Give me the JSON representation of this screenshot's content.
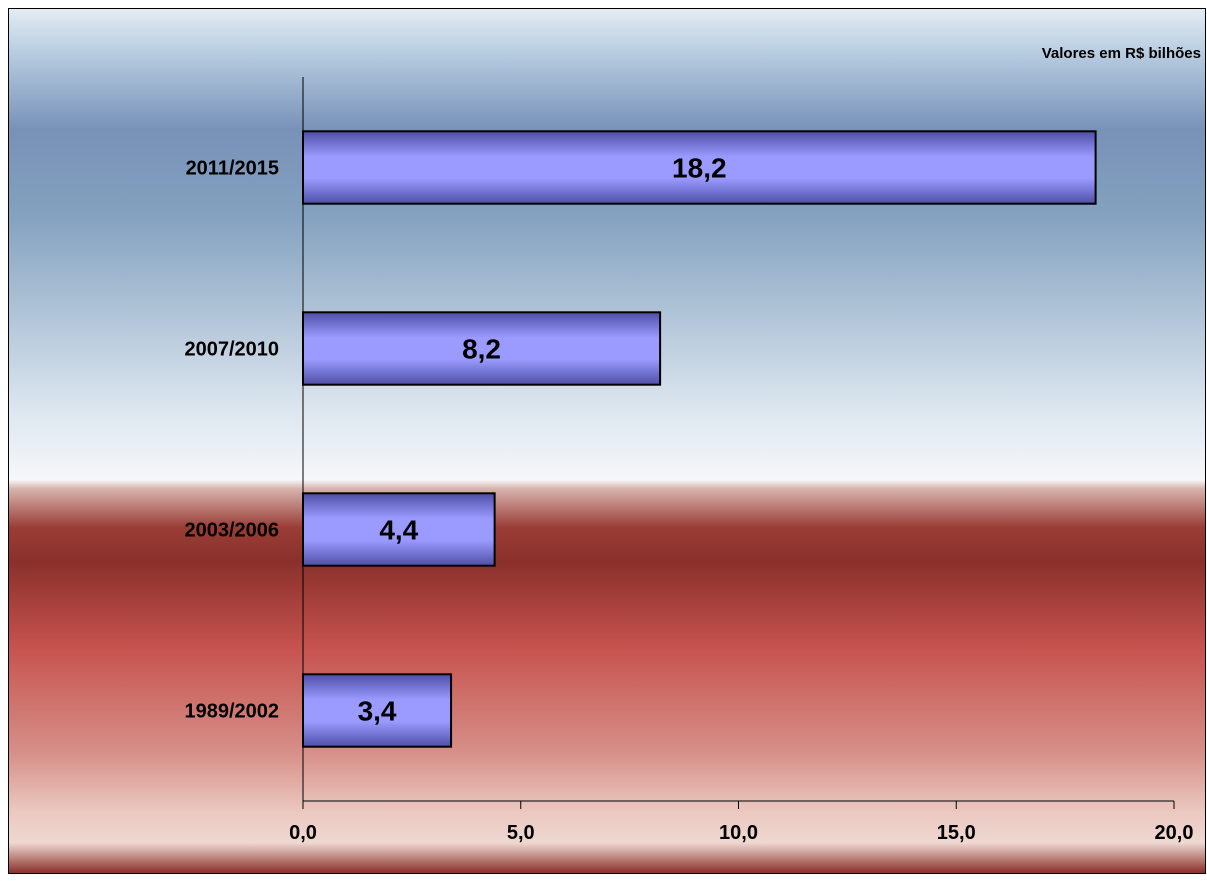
{
  "chart_data": {
    "type": "bar",
    "orientation": "horizontal",
    "unit_note": "Valores em R$ bilhões",
    "categories": [
      "2011/2015",
      "2007/2010",
      "2003/2006",
      "1989/2002"
    ],
    "values": [
      18.2,
      8.2,
      4.4,
      3.4
    ],
    "value_labels": [
      "18,2",
      "8,2",
      "4,4",
      "3,4"
    ],
    "xlim": [
      0,
      20
    ],
    "xticks": [
      0,
      5,
      10,
      15,
      20
    ],
    "xtick_labels": [
      "0,0",
      "5,0",
      "10,0",
      "15,0",
      "20,0"
    ],
    "grid": false,
    "legend": "none",
    "colors": {
      "bar_light": "#9a9aff",
      "bar_dark": "#4f4fa8",
      "bar_border": "#000000",
      "bg_blue_top": "#dfe9f2",
      "bg_blue_mid": "#7b94ba",
      "bg_white": "#f4f6fa",
      "bg_red_dark": "#8a2f2a",
      "bg_red_mid": "#c85a55",
      "bg_red_light": "#efd6d0"
    }
  }
}
